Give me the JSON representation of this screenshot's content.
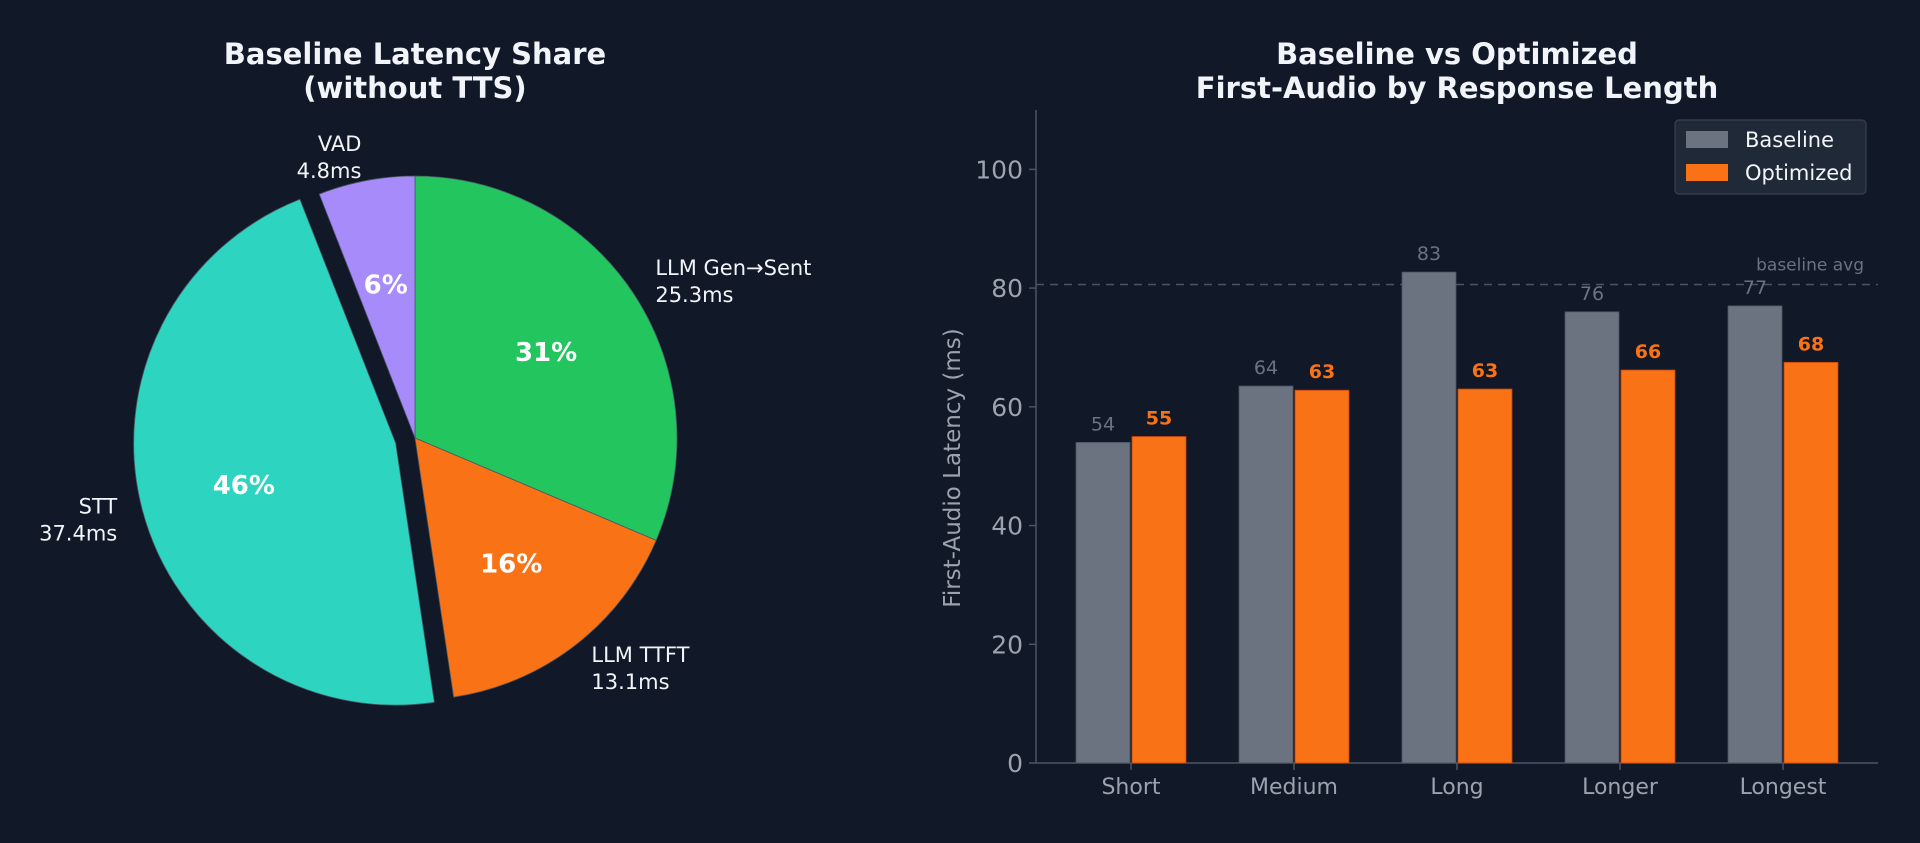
{
  "chart_data": [
    {
      "type": "pie",
      "title_lines": [
        "Baseline Latency Share",
        "(without TTS)"
      ],
      "slices": [
        {
          "name": "LLM Gen→Sent",
          "value": 25.3,
          "value_label": "25.3ms",
          "pct_label": "31%",
          "color": "#22c55e",
          "exploded": false
        },
        {
          "name": "LLM TTFT",
          "value": 13.1,
          "value_label": "13.1ms",
          "pct_label": "16%",
          "color": "#f97316",
          "exploded": false
        },
        {
          "name": "STT",
          "value": 37.4,
          "value_label": "37.4ms",
          "pct_label": "46%",
          "color": "#2dd4bf",
          "exploded": true
        },
        {
          "name": "VAD",
          "value": 4.8,
          "value_label": "4.8ms",
          "pct_label": "6%",
          "color": "#a78bfa",
          "exploded": false
        }
      ],
      "start": "12 o'clock",
      "direction": "clockwise"
    },
    {
      "type": "bar",
      "title_lines": [
        "Baseline vs Optimized",
        "First-Audio by Response Length"
      ],
      "categories": [
        "Short",
        "Medium",
        "Long",
        "Longer",
        "Longest"
      ],
      "series": [
        {
          "name": "Baseline",
          "color": "#6b7280",
          "values": [
            54,
            63.5,
            82.7,
            76,
            77
          ],
          "labels": [
            "54",
            "64",
            "83",
            "76",
            "77"
          ]
        },
        {
          "name": "Optimized",
          "color": "#f97316",
          "values": [
            55,
            62.8,
            63,
            66.2,
            67.5
          ],
          "labels": [
            "55",
            "63",
            "63",
            "66",
            "68"
          ]
        }
      ],
      "ylabel": "First-Audio Latency (ms)",
      "ylim": [
        0,
        110
      ],
      "yticks": [
        0,
        20,
        40,
        60,
        80,
        100
      ],
      "reference_line": {
        "value": 80.6,
        "label": "baseline avg"
      },
      "legend": "top-right",
      "grid": false
    }
  ]
}
